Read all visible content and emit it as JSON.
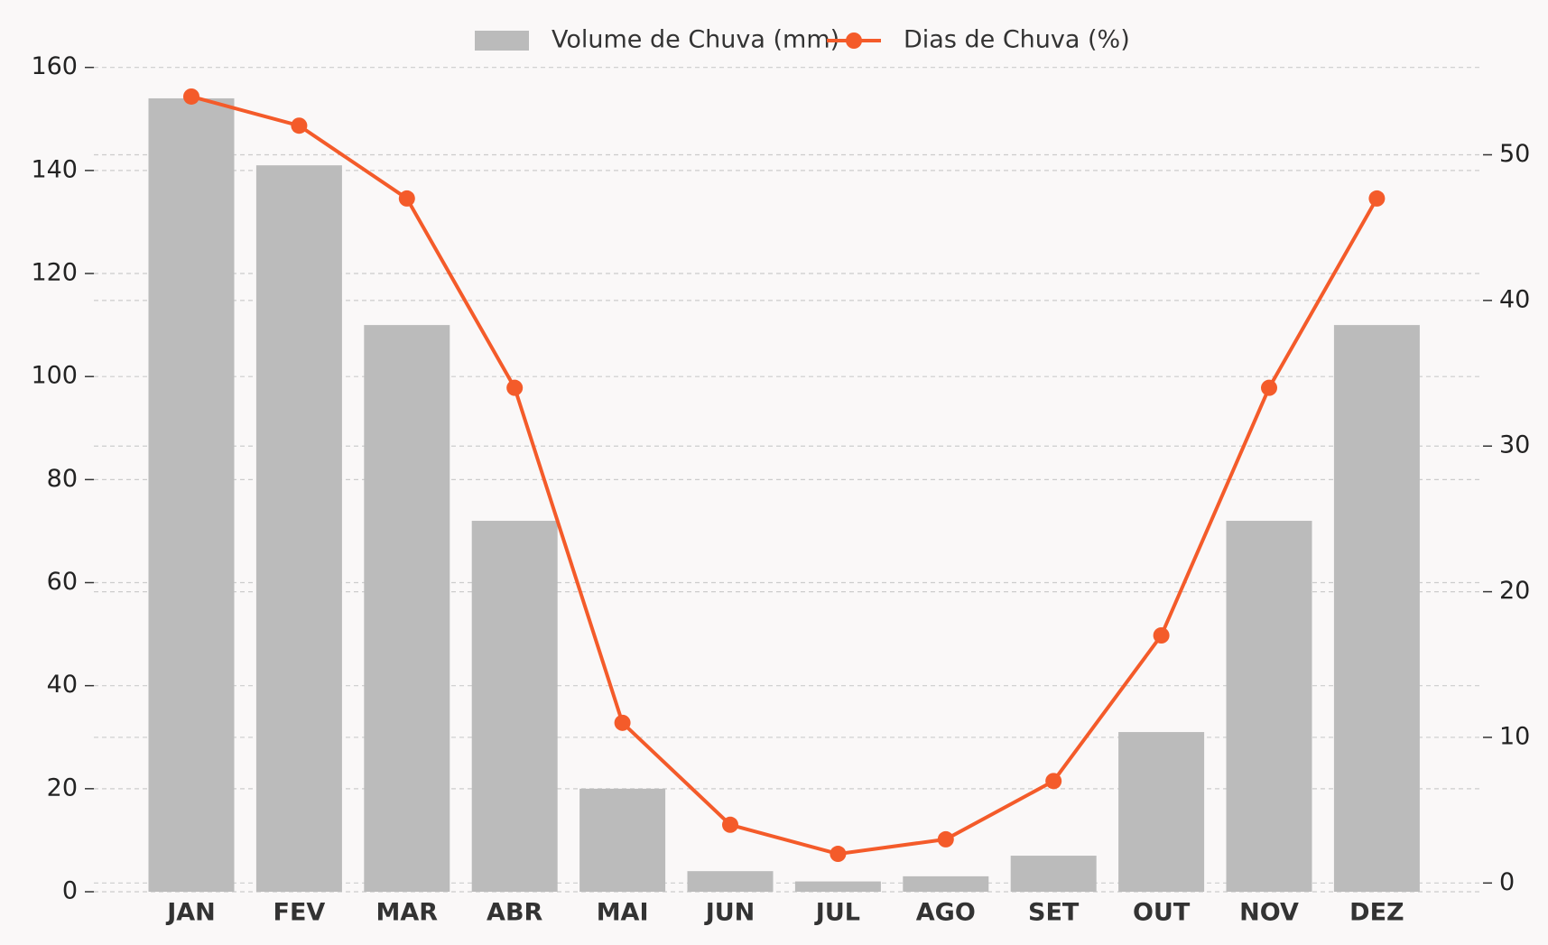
{
  "chart_data": {
    "type": "bar-line",
    "categories": [
      "JAN",
      "FEV",
      "MAR",
      "ABR",
      "MAI",
      "JUN",
      "JUL",
      "AGO",
      "SET",
      "OUT",
      "NOV",
      "DEZ"
    ],
    "series": [
      {
        "name": "Volume de Chuva (mm)",
        "type": "bar",
        "color": "#bbbbbb",
        "values": [
          154,
          141,
          110,
          72,
          20,
          4,
          2,
          3,
          7,
          31,
          72,
          110
        ]
      },
      {
        "name": "Dias de Chuva (%)",
        "type": "line",
        "color": "#f45b2a",
        "axis": "y2",
        "values": [
          54,
          52,
          47,
          34,
          11,
          4,
          2,
          3,
          7,
          17,
          34,
          47
        ]
      }
    ],
    "ylim": [
      0,
      161.7
    ],
    "yticks": [
      0,
      20,
      40,
      60,
      80,
      100,
      120,
      140,
      160
    ],
    "y2lim": [
      -0.6,
      56.6
    ],
    "y2ticks": [
      0,
      10,
      20,
      30,
      40,
      50
    ],
    "grid": true,
    "legend": "upper center"
  }
}
